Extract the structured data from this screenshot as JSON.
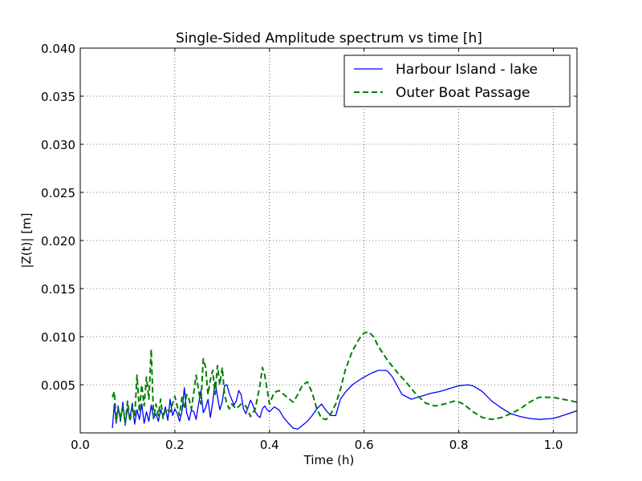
{
  "chart_data": {
    "type": "line",
    "title": "Single-Sided Amplitude spectrum vs time [h]",
    "xlabel": "Time (h)",
    "ylabel": "|Z(t)| [m]",
    "xlim": [
      0.0,
      1.05
    ],
    "ylim": [
      0.0,
      0.04
    ],
    "xticks": [
      0.0,
      0.2,
      0.4,
      0.6,
      0.8,
      1.0
    ],
    "xtick_labels": [
      "0.0",
      "0.2",
      "0.4",
      "0.6",
      "0.8",
      "1.0"
    ],
    "yticks": [
      0.005,
      0.01,
      0.015,
      0.02,
      0.025,
      0.03,
      0.035,
      0.04
    ],
    "ytick_labels": [
      "0.005",
      "0.010",
      "0.015",
      "0.020",
      "0.025",
      "0.030",
      "0.035",
      "0.040"
    ],
    "grid": true,
    "legend_position": "top-right",
    "series": [
      {
        "name": "Harbour Island - lake",
        "color": "#0000ff",
        "dash": "solid",
        "x": [
          0.068,
          0.072,
          0.076,
          0.08,
          0.085,
          0.09,
          0.095,
          0.1,
          0.105,
          0.11,
          0.115,
          0.12,
          0.125,
          0.13,
          0.135,
          0.14,
          0.145,
          0.15,
          0.155,
          0.16,
          0.165,
          0.17,
          0.175,
          0.18,
          0.185,
          0.19,
          0.195,
          0.2,
          0.205,
          0.21,
          0.215,
          0.22,
          0.225,
          0.23,
          0.235,
          0.24,
          0.245,
          0.25,
          0.255,
          0.26,
          0.265,
          0.27,
          0.275,
          0.28,
          0.285,
          0.29,
          0.295,
          0.3,
          0.305,
          0.31,
          0.315,
          0.32,
          0.325,
          0.33,
          0.335,
          0.34,
          0.345,
          0.35,
          0.355,
          0.36,
          0.365,
          0.37,
          0.375,
          0.38,
          0.385,
          0.39,
          0.395,
          0.4,
          0.41,
          0.42,
          0.43,
          0.44,
          0.45,
          0.46,
          0.47,
          0.48,
          0.49,
          0.5,
          0.51,
          0.52,
          0.53,
          0.54,
          0.55,
          0.56,
          0.575,
          0.59,
          0.6,
          0.615,
          0.63,
          0.645,
          0.65,
          0.66,
          0.68,
          0.7,
          0.72,
          0.74,
          0.76,
          0.78,
          0.8,
          0.82,
          0.83,
          0.85,
          0.87,
          0.89,
          0.91,
          0.93,
          0.95,
          0.97,
          1.0,
          1.02,
          1.05
        ],
        "y": [
          0.0005,
          0.003,
          0.001,
          0.0028,
          0.0012,
          0.0032,
          0.0008,
          0.0026,
          0.0015,
          0.0031,
          0.0009,
          0.0024,
          0.0014,
          0.003,
          0.001,
          0.0022,
          0.0012,
          0.0029,
          0.0015,
          0.002,
          0.0012,
          0.0024,
          0.0017,
          0.0027,
          0.0013,
          0.0035,
          0.0018,
          0.0025,
          0.002,
          0.0012,
          0.0022,
          0.0047,
          0.0021,
          0.0013,
          0.0024,
          0.0022,
          0.0014,
          0.003,
          0.0044,
          0.0021,
          0.0026,
          0.0035,
          0.0016,
          0.0032,
          0.0053,
          0.0038,
          0.0024,
          0.0032,
          0.0049,
          0.005,
          0.0041,
          0.0035,
          0.0029,
          0.0033,
          0.0044,
          0.004,
          0.0025,
          0.002,
          0.0027,
          0.0034,
          0.0029,
          0.0022,
          0.0018,
          0.0016,
          0.0025,
          0.0028,
          0.0024,
          0.0022,
          0.0027,
          0.0024,
          0.0016,
          0.001,
          0.0005,
          0.0004,
          0.0008,
          0.0012,
          0.0018,
          0.0025,
          0.003,
          0.0023,
          0.0018,
          0.0018,
          0.0035,
          0.0042,
          0.005,
          0.0055,
          0.0058,
          0.0062,
          0.0065,
          0.0065,
          0.0064,
          0.0058,
          0.004,
          0.0035,
          0.0038,
          0.0041,
          0.0043,
          0.0046,
          0.0049,
          0.005,
          0.0049,
          0.0043,
          0.0033,
          0.0026,
          0.002,
          0.0017,
          0.0015,
          0.0014,
          0.0015,
          0.0018,
          0.0023
        ]
      },
      {
        "name": "Outer Boat Passage",
        "color": "#008000",
        "dash": "dashed",
        "x": [
          0.068,
          0.072,
          0.076,
          0.08,
          0.085,
          0.09,
          0.095,
          0.1,
          0.105,
          0.11,
          0.115,
          0.12,
          0.125,
          0.13,
          0.135,
          0.14,
          0.145,
          0.15,
          0.155,
          0.16,
          0.165,
          0.17,
          0.175,
          0.18,
          0.19,
          0.2,
          0.21,
          0.215,
          0.22,
          0.225,
          0.23,
          0.235,
          0.24,
          0.245,
          0.25,
          0.255,
          0.26,
          0.265,
          0.27,
          0.275,
          0.28,
          0.285,
          0.29,
          0.295,
          0.3,
          0.305,
          0.31,
          0.315,
          0.32,
          0.33,
          0.34,
          0.35,
          0.36,
          0.37,
          0.38,
          0.385,
          0.39,
          0.395,
          0.4,
          0.41,
          0.42,
          0.43,
          0.44,
          0.45,
          0.46,
          0.47,
          0.48,
          0.49,
          0.5,
          0.51,
          0.52,
          0.53,
          0.54,
          0.55,
          0.56,
          0.575,
          0.59,
          0.6,
          0.61,
          0.62,
          0.63,
          0.65,
          0.67,
          0.69,
          0.71,
          0.73,
          0.75,
          0.77,
          0.79,
          0.8,
          0.81,
          0.83,
          0.85,
          0.87,
          0.89,
          0.91,
          0.93,
          0.95,
          0.97,
          1.0,
          1.02,
          1.05
        ],
        "y": [
          0.0037,
          0.0043,
          0.0012,
          0.0025,
          0.0015,
          0.0028,
          0.001,
          0.0033,
          0.0012,
          0.0027,
          0.0016,
          0.006,
          0.0022,
          0.005,
          0.0028,
          0.0058,
          0.0035,
          0.0087,
          0.0015,
          0.003,
          0.0018,
          0.0035,
          0.0015,
          0.0025,
          0.0022,
          0.0038,
          0.0018,
          0.0037,
          0.0025,
          0.004,
          0.0035,
          0.0025,
          0.0042,
          0.006,
          0.0045,
          0.003,
          0.0077,
          0.0068,
          0.004,
          0.0055,
          0.0065,
          0.004,
          0.007,
          0.005,
          0.0068,
          0.004,
          0.003,
          0.0025,
          0.003,
          0.0025,
          0.003,
          0.0028,
          0.0017,
          0.0025,
          0.005,
          0.0068,
          0.006,
          0.0045,
          0.003,
          0.0042,
          0.0044,
          0.004,
          0.0036,
          0.0032,
          0.004,
          0.005,
          0.0053,
          0.0042,
          0.0025,
          0.0015,
          0.0014,
          0.002,
          0.003,
          0.0045,
          0.0065,
          0.0085,
          0.0098,
          0.0104,
          0.0105,
          0.01,
          0.009,
          0.0075,
          0.0063,
          0.0052,
          0.004,
          0.0031,
          0.0028,
          0.003,
          0.0033,
          0.0032,
          0.003,
          0.0022,
          0.0016,
          0.0014,
          0.0016,
          0.002,
          0.0025,
          0.0032,
          0.0037,
          0.0037,
          0.0035,
          0.0032
        ]
      }
    ]
  }
}
